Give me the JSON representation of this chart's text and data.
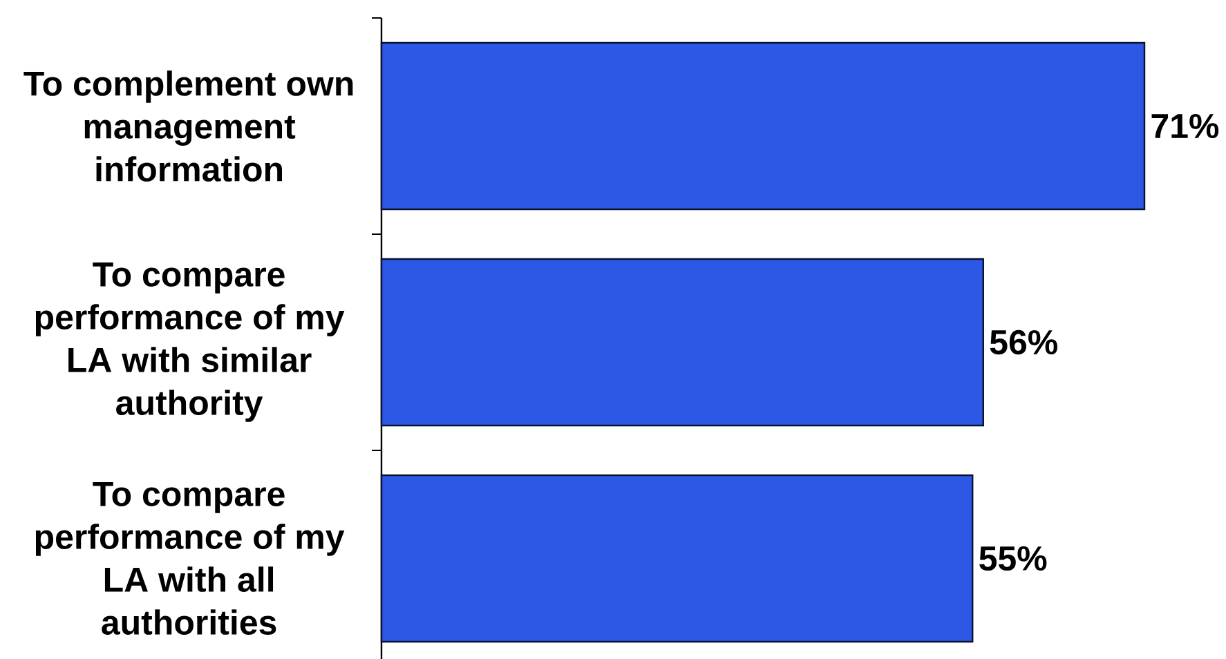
{
  "chart_data": {
    "type": "bar",
    "orientation": "horizontal",
    "categories": [
      "To complement own management information",
      "To compare performance of my LA with similar authority",
      "To compare performance of my LA with all authorities"
    ],
    "values": [
      71,
      56,
      55
    ],
    "value_labels": [
      "71%",
      "56%",
      "55%"
    ],
    "color": "#2d58e6"
  }
}
